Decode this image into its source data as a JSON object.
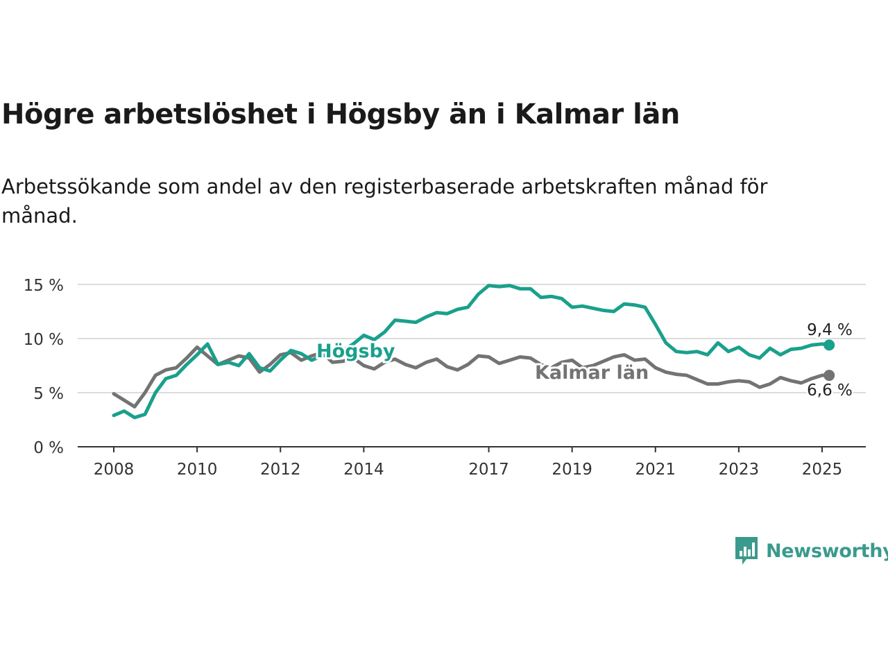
{
  "title": "Högre arbetslöshet i Högsby än i Kalmar län",
  "subtitle": "Arbetssökande som andel av den registerbaserade arbetskraften månad för månad.",
  "brand": {
    "name": "Newsworthy",
    "color": "#3a9a8c",
    "icon": "bar-chart-speech-bubble-icon"
  },
  "chart_data": {
    "type": "line",
    "y_ticks": [
      0,
      5,
      10,
      15
    ],
    "y_tick_labels": [
      "0 %",
      "5 %",
      "10 %",
      "15 %"
    ],
    "ylim": [
      0,
      15
    ],
    "x_ticks": [
      2008,
      2010,
      2012,
      2014,
      2017,
      2019,
      2021,
      2023,
      2025
    ],
    "xlim": [
      2008,
      2025
    ],
    "grid": true,
    "series": [
      {
        "name": "Högsby",
        "color": "#1aa08c",
        "end_label": "9,4 %",
        "x": [
          2008.0,
          2008.25,
          2008.5,
          2008.75,
          2009.0,
          2009.25,
          2009.5,
          2009.75,
          2010.0,
          2010.25,
          2010.5,
          2010.75,
          2011.0,
          2011.25,
          2011.5,
          2011.75,
          2012.0,
          2012.25,
          2012.5,
          2012.75,
          2013.0,
          2013.25,
          2013.5,
          2013.75,
          2014.0,
          2014.25,
          2014.5,
          2014.75,
          2015.0,
          2015.25,
          2015.5,
          2015.75,
          2016.0,
          2016.25,
          2016.5,
          2016.75,
          2017.0,
          2017.25,
          2017.5,
          2017.75,
          2018.0,
          2018.25,
          2018.5,
          2018.75,
          2019.0,
          2019.25,
          2019.5,
          2019.75,
          2020.0,
          2020.25,
          2020.5,
          2020.75,
          2021.0,
          2021.25,
          2021.5,
          2021.75,
          2022.0,
          2022.25,
          2022.5,
          2022.75,
          2023.0,
          2023.25,
          2023.5,
          2023.75,
          2024.0,
          2024.25,
          2024.5,
          2024.75,
          2025.0,
          2025.17
        ],
        "values": [
          2.9,
          3.3,
          2.7,
          3.0,
          5.0,
          6.3,
          6.6,
          7.6,
          8.5,
          9.5,
          7.6,
          7.8,
          7.5,
          8.6,
          7.3,
          7.0,
          8.0,
          8.9,
          8.6,
          8.0,
          8.4,
          8.6,
          8.9,
          9.5,
          10.3,
          9.9,
          10.6,
          11.7,
          11.6,
          11.5,
          12.0,
          12.4,
          12.3,
          12.7,
          12.9,
          14.1,
          14.9,
          14.8,
          14.9,
          14.6,
          14.6,
          13.8,
          13.9,
          13.7,
          12.9,
          13.0,
          12.8,
          12.6,
          12.5,
          13.2,
          13.1,
          12.9,
          11.3,
          9.6,
          8.8,
          8.7,
          8.8,
          8.5,
          9.6,
          8.8,
          9.2,
          8.5,
          8.2,
          9.1,
          8.5,
          9.0,
          9.1,
          9.4,
          9.5,
          9.4
        ]
      },
      {
        "name": "Kalmar län",
        "color": "#737373",
        "end_label": "6,6 %",
        "x": [
          2008.0,
          2008.25,
          2008.5,
          2008.75,
          2009.0,
          2009.25,
          2009.5,
          2009.75,
          2010.0,
          2010.25,
          2010.5,
          2010.75,
          2011.0,
          2011.25,
          2011.5,
          2011.75,
          2012.0,
          2012.25,
          2012.5,
          2012.75,
          2013.0,
          2013.25,
          2013.5,
          2013.75,
          2014.0,
          2014.25,
          2014.5,
          2014.75,
          2015.0,
          2015.25,
          2015.5,
          2015.75,
          2016.0,
          2016.25,
          2016.5,
          2016.75,
          2017.0,
          2017.25,
          2017.5,
          2017.75,
          2018.0,
          2018.25,
          2018.5,
          2018.75,
          2019.0,
          2019.25,
          2019.5,
          2019.75,
          2020.0,
          2020.25,
          2020.5,
          2020.75,
          2021.0,
          2021.25,
          2021.5,
          2021.75,
          2022.0,
          2022.25,
          2022.5,
          2022.75,
          2023.0,
          2023.25,
          2023.5,
          2023.75,
          2024.0,
          2024.25,
          2024.5,
          2024.75,
          2025.0,
          2025.17
        ],
        "values": [
          4.9,
          4.3,
          3.7,
          5.0,
          6.6,
          7.1,
          7.3,
          8.2,
          9.2,
          8.4,
          7.6,
          8.0,
          8.4,
          8.2,
          6.9,
          7.6,
          8.5,
          8.7,
          8.0,
          8.4,
          8.7,
          7.8,
          7.9,
          8.2,
          7.5,
          7.2,
          7.8,
          8.1,
          7.6,
          7.3,
          7.8,
          8.1,
          7.4,
          7.1,
          7.6,
          8.4,
          8.3,
          7.7,
          8.0,
          8.3,
          8.2,
          7.6,
          7.3,
          7.8,
          8.0,
          7.3,
          7.5,
          7.9,
          8.3,
          8.5,
          8.0,
          8.1,
          7.3,
          6.9,
          6.7,
          6.6,
          6.2,
          5.8,
          5.8,
          6.0,
          6.1,
          6.0,
          5.5,
          5.8,
          6.4,
          6.1,
          5.9,
          6.3,
          6.6,
          6.6
        ]
      }
    ],
    "series_labels": [
      "Högsby",
      "Kalmar län"
    ]
  }
}
